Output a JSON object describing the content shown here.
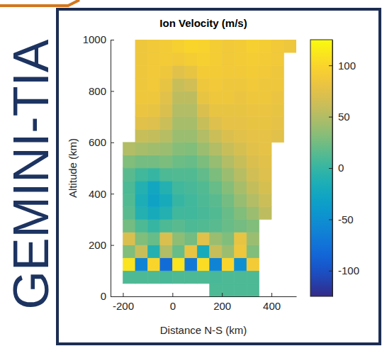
{
  "chart_data": {
    "type": "heatmap",
    "title": "Ion Velocity (m/s)",
    "x_label": "Distance N-S (km)",
    "y_label": "Altitude (km)",
    "side_label": "GEMINI-TIA",
    "xlim": [
      -250,
      500
    ],
    "ylim": [
      0,
      1000
    ],
    "xticks": [
      -200,
      0,
      200,
      400
    ],
    "yticks": [
      0,
      200,
      400,
      600,
      800,
      1000
    ],
    "x_bins": [
      -250,
      -200,
      -150,
      -100,
      -50,
      0,
      50,
      100,
      150,
      200,
      250,
      300,
      350,
      400,
      450,
      500
    ],
    "y_bins": [
      0,
      50,
      100,
      150,
      200,
      250,
      300,
      350,
      400,
      450,
      500,
      550,
      600,
      650,
      700,
      750,
      800,
      850,
      900,
      950,
      1000
    ],
    "values": [
      [
        null,
        null,
        null,
        null,
        null,
        null,
        null,
        null,
        10,
        10,
        10,
        10,
        null,
        null,
        null
      ],
      [
        null,
        10,
        10,
        10,
        8,
        10,
        10,
        10,
        8,
        10,
        10,
        10,
        null,
        null,
        null
      ],
      [
        null,
        110,
        -60,
        100,
        -80,
        110,
        -70,
        105,
        -60,
        100,
        -50,
        90,
        null,
        null,
        null
      ],
      [
        null,
        30,
        60,
        -10,
        50,
        20,
        80,
        -20,
        60,
        40,
        85,
        30,
        null,
        null,
        null
      ],
      [
        null,
        70,
        30,
        20,
        70,
        35,
        25,
        75,
        40,
        30,
        80,
        40,
        null,
        null,
        null
      ],
      [
        null,
        25,
        10,
        0,
        10,
        15,
        10,
        12,
        15,
        20,
        25,
        30,
        null,
        null,
        null
      ],
      [
        null,
        15,
        -10,
        -20,
        -10,
        5,
        5,
        8,
        12,
        20,
        30,
        40,
        55,
        null,
        null
      ],
      [
        null,
        12,
        -15,
        -30,
        -20,
        0,
        5,
        10,
        15,
        25,
        38,
        50,
        62,
        null,
        null
      ],
      [
        null,
        10,
        -10,
        -25,
        -10,
        5,
        8,
        12,
        20,
        32,
        45,
        58,
        68,
        null,
        null
      ],
      [
        null,
        15,
        5,
        0,
        10,
        12,
        12,
        18,
        28,
        40,
        52,
        65,
        72,
        null,
        null
      ],
      [
        null,
        30,
        25,
        25,
        28,
        22,
        20,
        28,
        38,
        50,
        60,
        70,
        75,
        null,
        null
      ],
      [
        null,
        50,
        45,
        42,
        40,
        32,
        30,
        40,
        50,
        60,
        68,
        75,
        78,
        null,
        null
      ],
      [
        null,
        null,
        60,
        58,
        52,
        40,
        40,
        50,
        62,
        70,
        75,
        78,
        78,
        75,
        null
      ],
      [
        null,
        null,
        75,
        72,
        62,
        45,
        45,
        60,
        72,
        78,
        78,
        80,
        80,
        78,
        null
      ],
      [
        null,
        null,
        82,
        80,
        70,
        50,
        50,
        70,
        80,
        80,
        80,
        82,
        82,
        80,
        null
      ],
      [
        null,
        null,
        85,
        85,
        75,
        55,
        55,
        80,
        85,
        85,
        82,
        85,
        85,
        82,
        null
      ],
      [
        null,
        null,
        85,
        88,
        80,
        60,
        65,
        85,
        88,
        85,
        85,
        88,
        85,
        85,
        null
      ],
      [
        null,
        null,
        85,
        88,
        85,
        75,
        80,
        90,
        90,
        88,
        88,
        90,
        88,
        85,
        null
      ],
      [
        null,
        null,
        85,
        88,
        90,
        88,
        92,
        95,
        92,
        88,
        90,
        92,
        90,
        88,
        null
      ],
      [
        null,
        null,
        85,
        88,
        90,
        95,
        100,
        98,
        92,
        88,
        90,
        95,
        92,
        88,
        85
      ]
    ],
    "colorbar": {
      "lim": [
        -125,
        125
      ],
      "ticks": [
        -100,
        -50,
        0,
        50,
        100
      ]
    }
  }
}
